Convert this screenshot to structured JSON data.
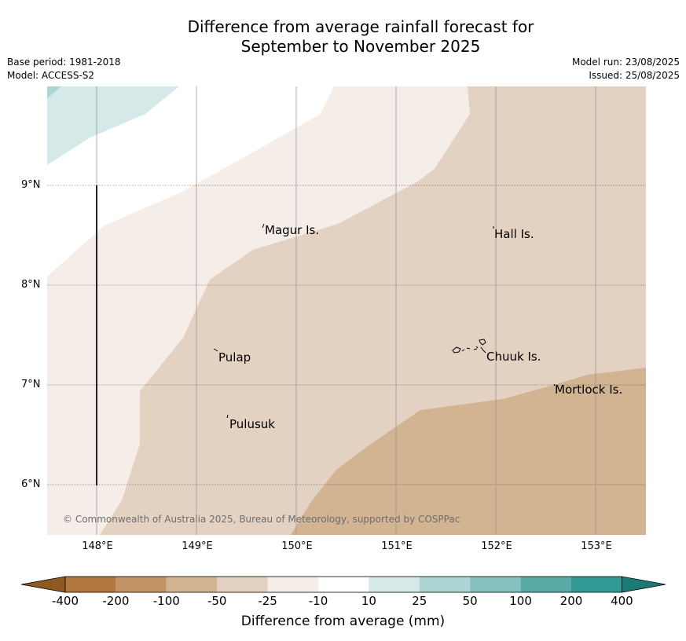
{
  "title_line1": "Difference from average rainfall forecast for",
  "title_line2": "September to November 2025",
  "meta_left": {
    "base_period": "Base period: 1981-2018",
    "model": "Model: ACCESS-S2"
  },
  "meta_right": {
    "model_run": "Model run: 23/08/2025",
    "issued": "Issued: 25/08/2025"
  },
  "map": {
    "lon_range": [
      147.5,
      153.5
    ],
    "lat_range": [
      5.5,
      10.0
    ],
    "lat_ticks": [
      "9°N",
      "8°N",
      "7°N",
      "6°N"
    ],
    "lon_ticks": [
      "148°E",
      "149°E",
      "150°E",
      "151°E",
      "152°E",
      "153°E"
    ],
    "gridlines": true,
    "places": [
      {
        "name": "Magur Is.",
        "lon": 149.73,
        "lat": 8.55
      },
      {
        "name": "Hall Is.",
        "lon": 151.98,
        "lat": 8.51
      },
      {
        "name": "Pulap",
        "lon": 149.2,
        "lat": 7.28
      },
      {
        "name": "Chuuk Is.",
        "lon": 151.85,
        "lat": 7.29
      },
      {
        "name": "Mortlock Is.",
        "lon": 152.6,
        "lat": 6.96
      },
      {
        "name": "Pulusuk",
        "lon": 149.32,
        "lat": 6.61
      }
    ],
    "copyright": "© Commonwealth of Australia 2025, Bureau of Meteorology, supported by COSPPac"
  },
  "colorbar": {
    "labels": [
      "-400",
      "-200",
      "-100",
      "-50",
      "-25",
      "-10",
      "10",
      "25",
      "50",
      "100",
      "200",
      "400"
    ],
    "colors": [
      "#8f5a22",
      "#b0773e",
      "#c39366",
      "#d2b392",
      "#e3d1c1",
      "#f5ede7",
      "#ffffff",
      "#d4e9e8",
      "#add5d3",
      "#85c1be",
      "#59aba8",
      "#339995",
      "#1a7a76"
    ],
    "title": "Difference from average (mm)"
  }
}
